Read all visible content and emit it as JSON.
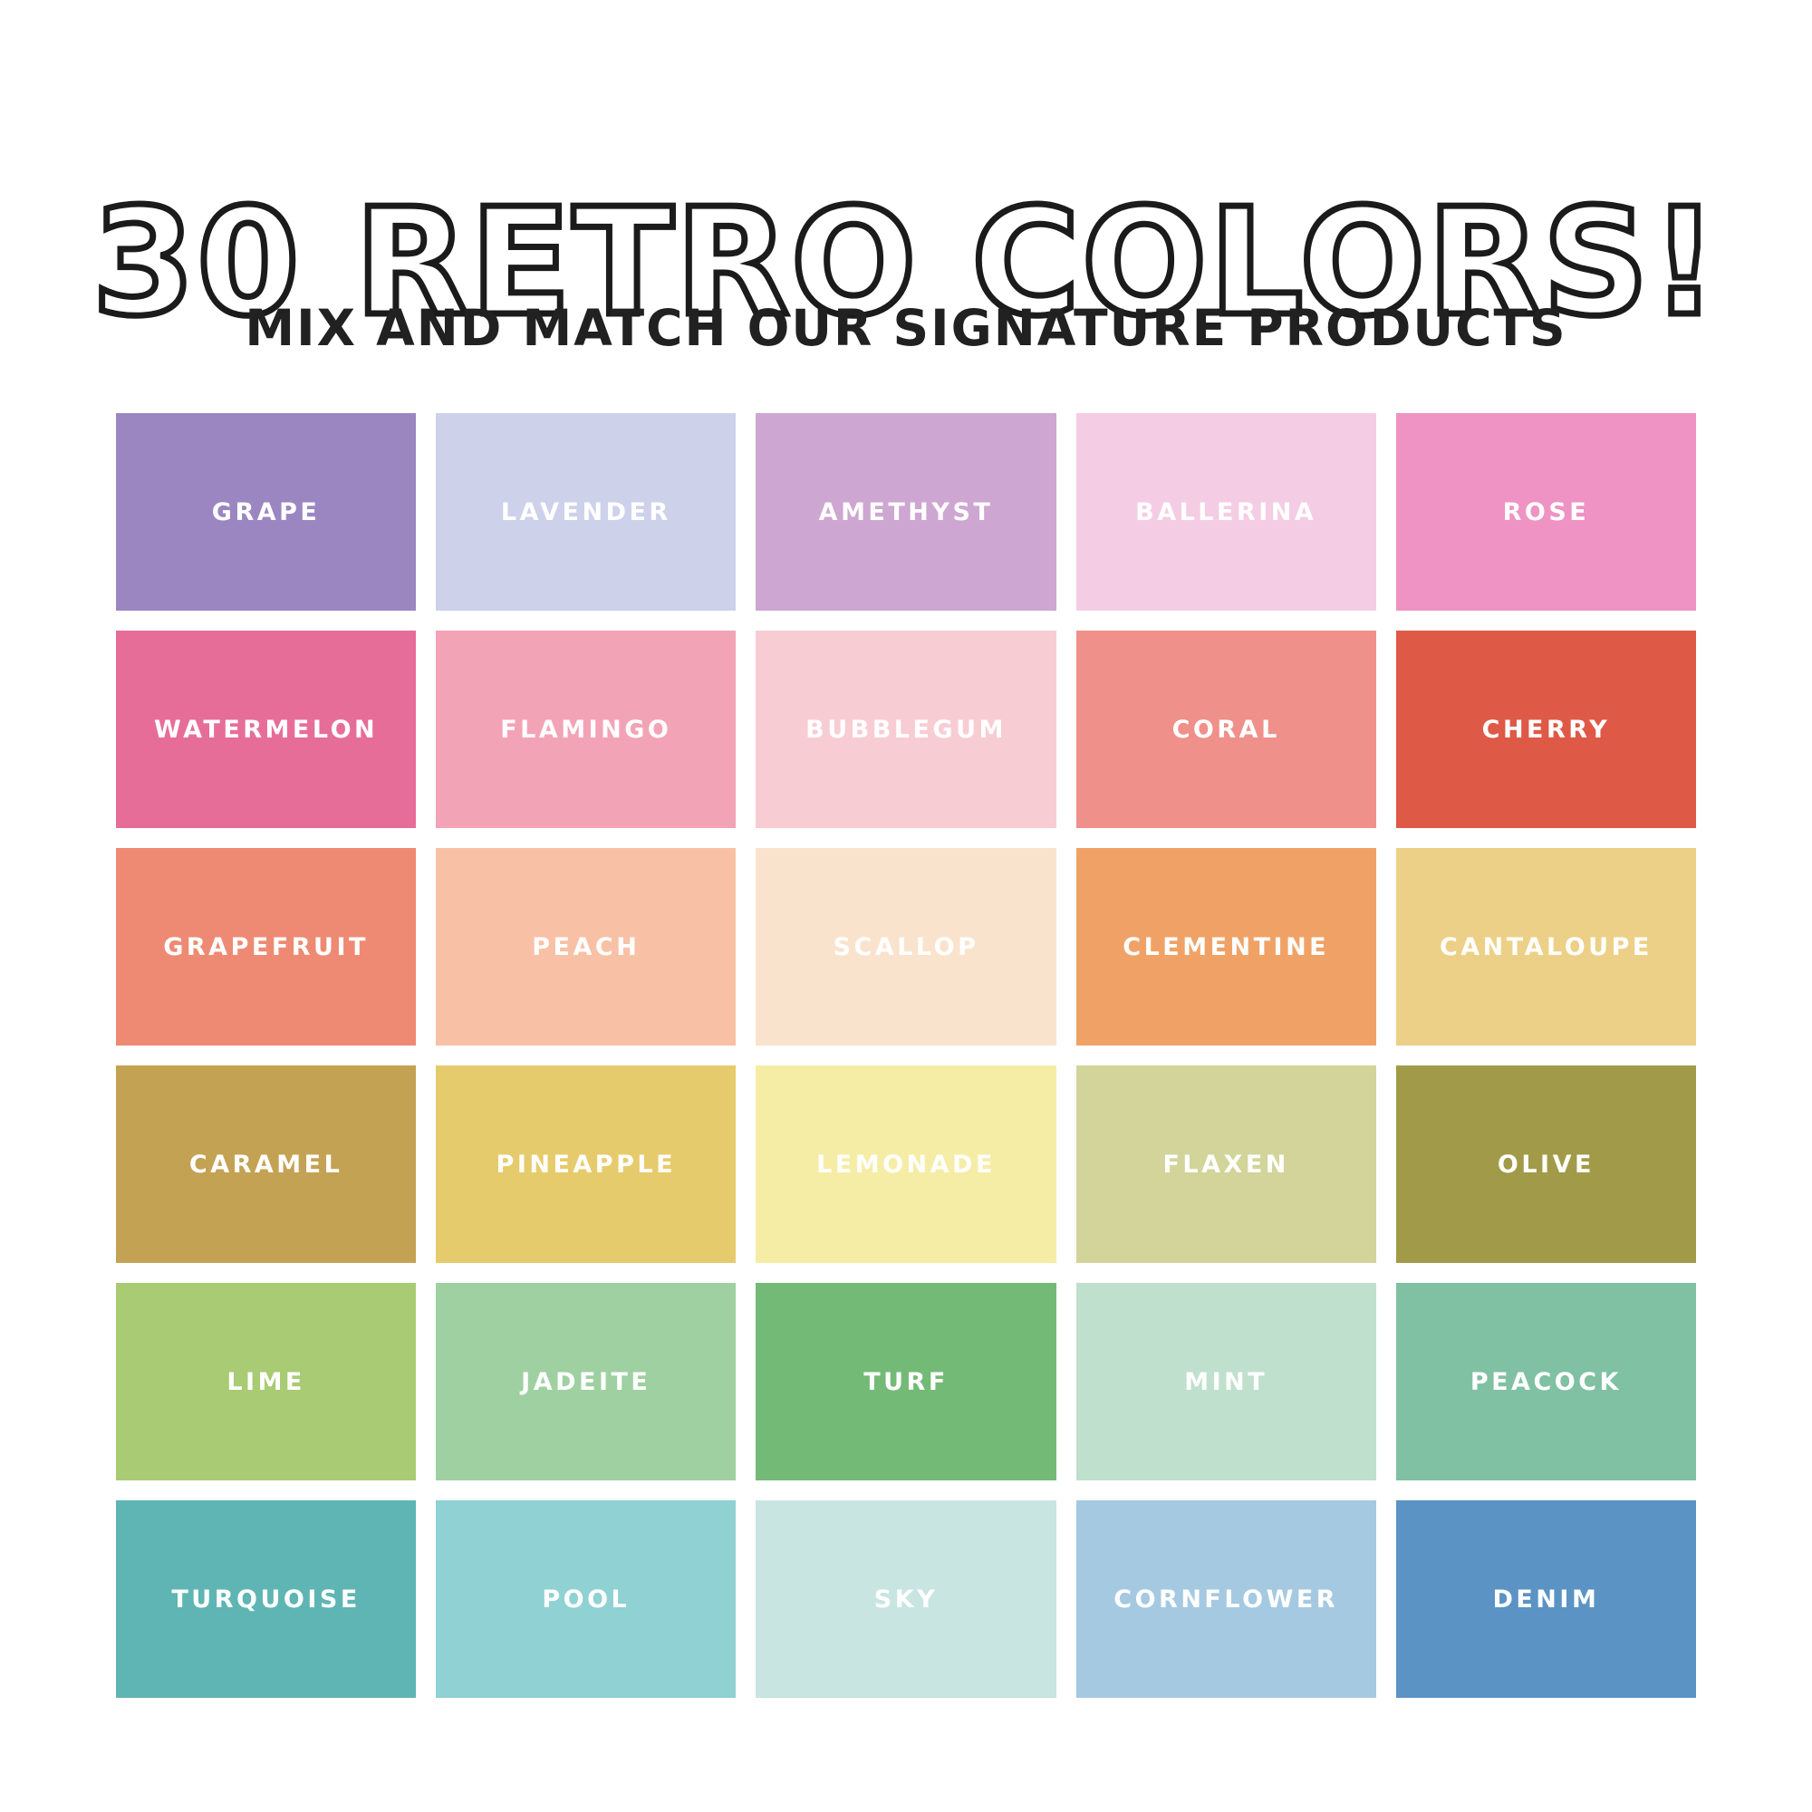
{
  "title": "30 RETRO COLORS!",
  "subtitle": "MIX AND MATCH OUR SIGNATURE PRODUCTS",
  "colors": {
    "background": "#ffffff",
    "title_outline": "#1b1b1b",
    "subtitle_text": "#212121",
    "swatch_label": "#ffffff"
  },
  "grid": {
    "columns": 5,
    "rows": 6
  },
  "swatches": [
    {
      "name": "GRAPE",
      "hex": "#9b86c1"
    },
    {
      "name": "LAVENDER",
      "hex": "#cdd1ea"
    },
    {
      "name": "AMETHYST",
      "hex": "#cda6d1"
    },
    {
      "name": "BALLERINA",
      "hex": "#f4cde4"
    },
    {
      "name": "ROSE",
      "hex": "#ee93c3"
    },
    {
      "name": "WATERMELON",
      "hex": "#e76d99"
    },
    {
      "name": "FLAMINGO",
      "hex": "#f3a3b6"
    },
    {
      "name": "BUBBLEGUM",
      "hex": "#f8ccd3"
    },
    {
      "name": "CORAL",
      "hex": "#f0908a"
    },
    {
      "name": "CHERRY",
      "hex": "#df5947"
    },
    {
      "name": "GRAPEFRUIT",
      "hex": "#ee8a73"
    },
    {
      "name": "PEACH",
      "hex": "#f8c1a5"
    },
    {
      "name": "SCALLOP",
      "hex": "#fae3cd"
    },
    {
      "name": "CLEMENTINE",
      "hex": "#f0a266"
    },
    {
      "name": "CANTALOUPE",
      "hex": "#edd087"
    },
    {
      "name": "CARAMEL",
      "hex": "#c4a254"
    },
    {
      "name": "PINEAPPLE",
      "hex": "#e6cb6c"
    },
    {
      "name": "LEMONADE",
      "hex": "#f5eda6"
    },
    {
      "name": "FLAXEN",
      "hex": "#d2d49a"
    },
    {
      "name": "OLIVE",
      "hex": "#a19b49"
    },
    {
      "name": "LIME",
      "hex": "#a8cb74"
    },
    {
      "name": "JADEITE",
      "hex": "#9fd0a1"
    },
    {
      "name": "TURF",
      "hex": "#74ba77"
    },
    {
      "name": "MINT",
      "hex": "#bfe0cd"
    },
    {
      "name": "PEACOCK",
      "hex": "#80c0a3"
    },
    {
      "name": "TURQUOISE",
      "hex": "#5fb5b3"
    },
    {
      "name": "POOL",
      "hex": "#90d1d3"
    },
    {
      "name": "SKY",
      "hex": "#c8e5e1"
    },
    {
      "name": "CORNFLOWER",
      "hex": "#a5c9e1"
    },
    {
      "name": "DENIM",
      "hex": "#5b93c4"
    }
  ]
}
